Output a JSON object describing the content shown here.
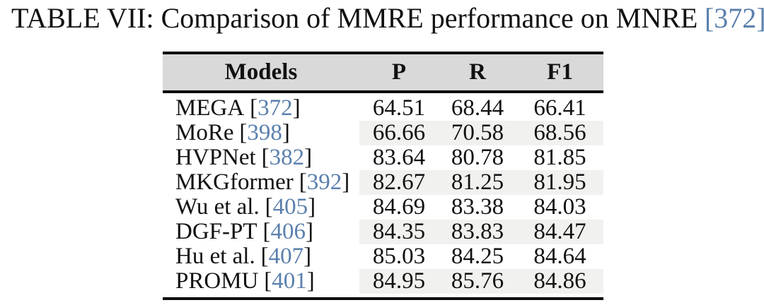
{
  "caption": {
    "prefix": "TABLE VII: Comparison of MMRE performance on MNRE",
    "bracket_open": "[",
    "cite": "372",
    "bracket_close": "]",
    "suffix": "."
  },
  "table": {
    "columns": [
      "Models",
      "P",
      "R",
      "F1"
    ],
    "bracket_open": "[",
    "bracket_close": "]",
    "rows": [
      {
        "model": "MEGA",
        "cite": "372",
        "p": "64.51",
        "r": "68.44",
        "f1": "66.41"
      },
      {
        "model": "MoRe",
        "cite": "398",
        "p": "66.66",
        "r": "70.58",
        "f1": "68.56"
      },
      {
        "model": "HVPNet",
        "cite": "382",
        "p": "83.64",
        "r": "80.78",
        "f1": "81.85"
      },
      {
        "model": "MKGformer",
        "cite": "392",
        "p": "82.67",
        "r": "81.25",
        "f1": "81.95"
      },
      {
        "model": "Wu et al.",
        "cite": "405",
        "p": "84.69",
        "r": "83.38",
        "f1": "84.03"
      },
      {
        "model": "DGF-PT",
        "cite": "406",
        "p": "84.35",
        "r": "83.83",
        "f1": "84.47"
      },
      {
        "model": "Hu et al.",
        "cite": "407",
        "p": "85.03",
        "r": "84.25",
        "f1": "84.64"
      },
      {
        "model": "PROMU",
        "cite": "401",
        "p": "84.95",
        "r": "85.76",
        "f1": "84.86"
      }
    ]
  },
  "colors": {
    "citation_blue": "#5b80ad",
    "header_bg": "#d9d9d9",
    "stripe_bg": "#f1f1ef",
    "rule_black": "#0d0d0d"
  }
}
